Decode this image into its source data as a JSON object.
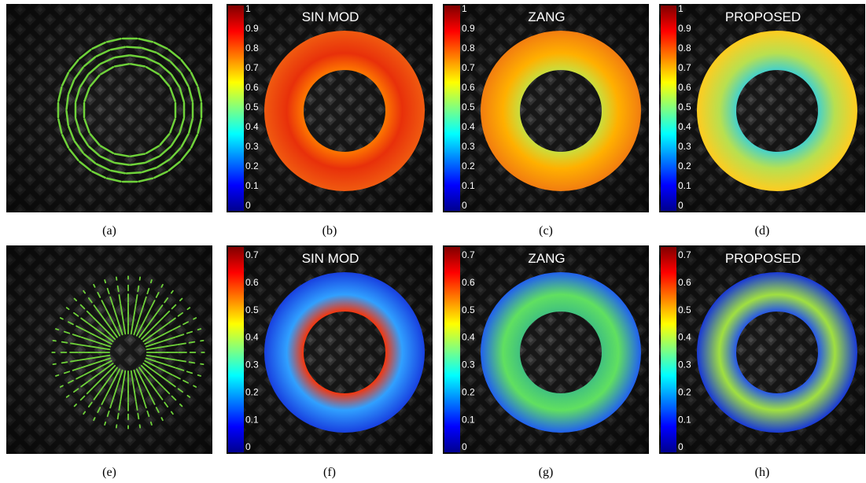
{
  "panels": [
    {
      "caption": "(a)"
    },
    {
      "caption": "(b)",
      "title": "SIN MOD",
      "colorbar": [
        1,
        0.9,
        0.8,
        0.7,
        0.6,
        0.5,
        0.4,
        0.3,
        0.2,
        0.1,
        0
      ]
    },
    {
      "caption": "(c)",
      "title": "ZANG",
      "colorbar": [
        1,
        0.9,
        0.8,
        0.7,
        0.6,
        0.5,
        0.4,
        0.3,
        0.2,
        0.1,
        0
      ]
    },
    {
      "caption": "(d)",
      "title": "PROPOSED",
      "colorbar": [
        1,
        0.9,
        0.8,
        0.7,
        0.6,
        0.5,
        0.4,
        0.3,
        0.2,
        0.1,
        0
      ]
    },
    {
      "caption": "(e)"
    },
    {
      "caption": "(f)",
      "title": "SIN MOD",
      "colorbar": [
        0.7,
        0.6,
        0.5,
        0.4,
        0.3,
        0.2,
        0.1,
        0
      ]
    },
    {
      "caption": "(g)",
      "title": "ZANG",
      "colorbar": [
        0.7,
        0.6,
        0.5,
        0.4,
        0.3,
        0.2,
        0.1,
        0
      ]
    },
    {
      "caption": "(h)",
      "title": "PROPOSED",
      "colorbar": [
        0.7,
        0.6,
        0.5,
        0.4,
        0.3,
        0.2,
        0.1,
        0
      ]
    }
  ]
}
